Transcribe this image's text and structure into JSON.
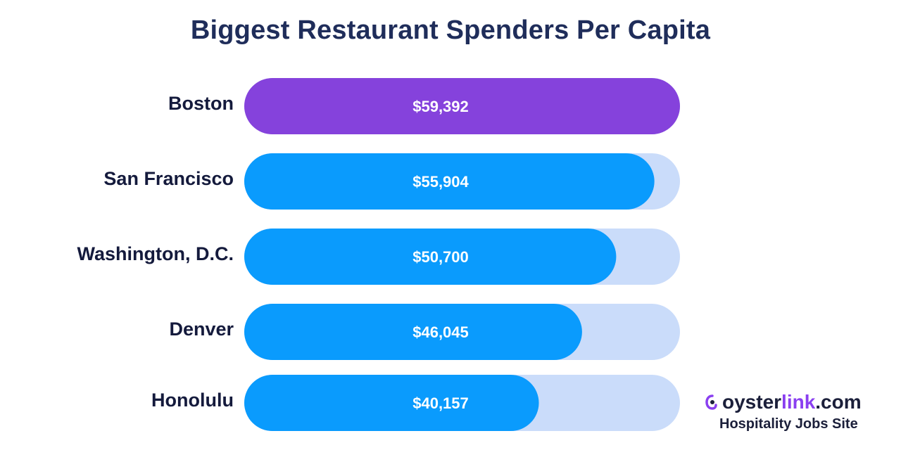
{
  "title": "Biggest Restaurant Spenders Per Capita",
  "chart_data": {
    "type": "bar",
    "orientation": "horizontal",
    "title": "Biggest Restaurant Spenders Per Capita",
    "xlabel": "",
    "ylabel": "",
    "categories": [
      "Boston",
      "San Francisco",
      "Washington, D.C.",
      "Denver",
      "Honolulu"
    ],
    "values": [
      59392,
      55904,
      50700,
      46045,
      40157
    ],
    "value_labels": [
      "$59,392",
      "$55,904",
      "$50,700",
      "$46,045",
      "$40,157"
    ],
    "xlim": [
      0,
      59392
    ],
    "grid": false,
    "colors": {
      "highlight": "#8542dc",
      "bar": "#0a9bfd",
      "track": "#cadcfa",
      "label": "#141a3c",
      "value_text": "#ffffff"
    }
  },
  "brand": {
    "oyster": "oyster",
    "link": "link",
    "com": ".com",
    "tagline": "Hospitality Jobs Site",
    "mark_icon": "oyster-logo-icon"
  }
}
